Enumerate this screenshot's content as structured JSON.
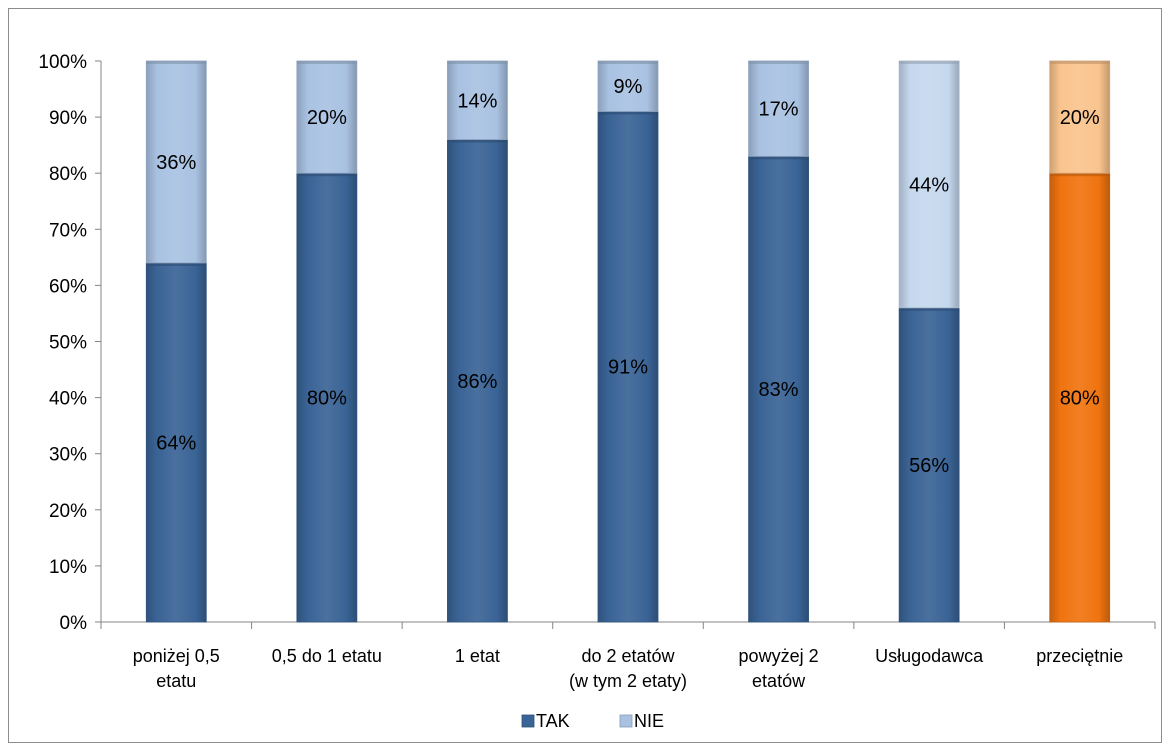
{
  "chart_data": {
    "type": "bar",
    "stacked": true,
    "percent_stacked": true,
    "title": "",
    "xlabel": "",
    "ylabel": "",
    "ylim": [
      0,
      100
    ],
    "y_ticks": [
      "0%",
      "10%",
      "20%",
      "30%",
      "40%",
      "50%",
      "60%",
      "70%",
      "80%",
      "90%",
      "100%"
    ],
    "grid": false,
    "legend_position": "bottom",
    "categories": [
      [
        "poniżej 0,5",
        "etatu"
      ],
      [
        "0,5 do 1 etatu"
      ],
      [
        "1 etat"
      ],
      [
        "do 2 etatów",
        "(w tym 2 etaty)"
      ],
      [
        "powyżej 2",
        "etatów"
      ],
      [
        "Usługodawca"
      ],
      [
        "przeciętnie"
      ]
    ],
    "series": [
      {
        "name": "TAK",
        "values": [
          64,
          80,
          86,
          91,
          83,
          56,
          80
        ],
        "labels": [
          "64%",
          "80%",
          "86%",
          "91%",
          "83%",
          "56%",
          "80%"
        ],
        "color": "#3a6496",
        "colors": [
          "#3a6496",
          "#3a6496",
          "#3a6496",
          "#3a6496",
          "#3a6496",
          "#3a6496",
          "#f07410"
        ]
      },
      {
        "name": "NIE",
        "values": [
          36,
          20,
          14,
          9,
          17,
          44,
          20
        ],
        "labels": [
          "36%",
          "20%",
          "14%",
          "9%",
          "17%",
          "44%",
          "20%"
        ],
        "color": "#a9c2e2",
        "colors": [
          "#a9c2e2",
          "#a9c2e2",
          "#a9c2e2",
          "#a9c2e2",
          "#a9c2e2",
          "#c5d8ee",
          "#fac48e"
        ]
      }
    ]
  }
}
